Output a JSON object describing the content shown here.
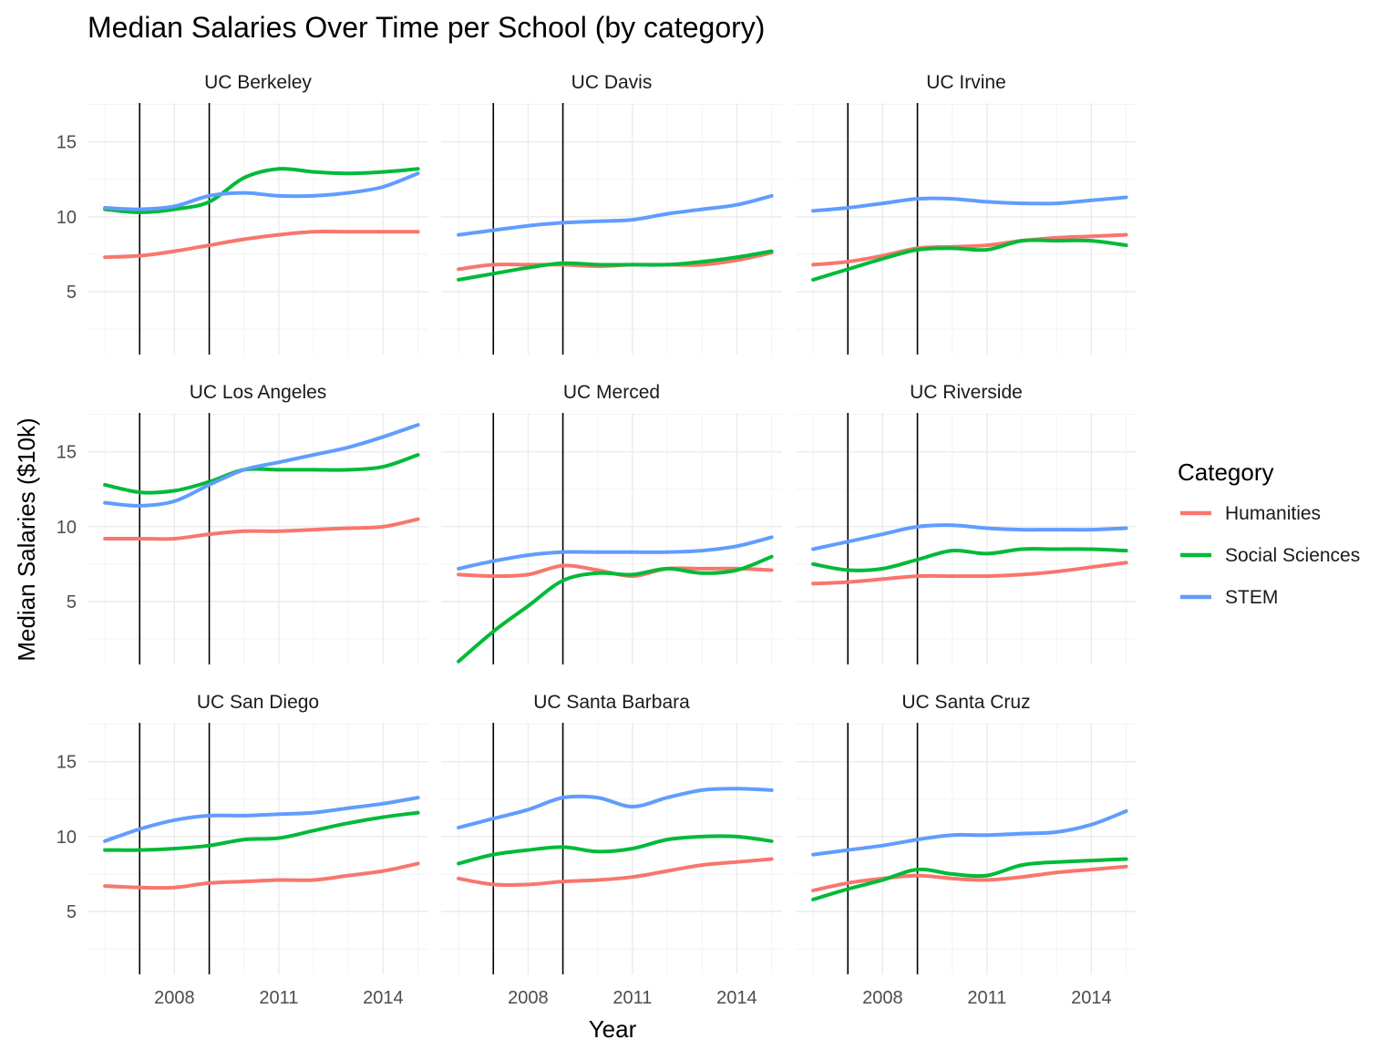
{
  "chart_data": {
    "type": "line",
    "title": "Median Salaries Over Time per School (by category)",
    "xlabel": "Year",
    "ylabel": "Median Salaries ($10k)",
    "xlim": [
      2005.5,
      2015.3
    ],
    "ylim": [
      0.8,
      17.6
    ],
    "x_ticks": [
      2008,
      2011,
      2014
    ],
    "y_ticks": [
      5,
      10,
      15
    ],
    "reference_lines_x": [
      2007,
      2009
    ],
    "legend": {
      "title": "Category",
      "position": "right",
      "entries": [
        "Humanities",
        "Social Sciences",
        "STEM"
      ]
    },
    "colors": {
      "Humanities": "#F8766D",
      "Social Sciences": "#00BA38",
      "STEM": "#619CFF"
    },
    "x": [
      2006,
      2007,
      2008,
      2009,
      2010,
      2011,
      2012,
      2013,
      2014,
      2015
    ],
    "panels": [
      {
        "name": "UC Berkeley",
        "series": [
          {
            "name": "Humanities",
            "values": [
              7.3,
              7.4,
              7.7,
              8.1,
              8.5,
              8.8,
              9.0,
              9.0,
              9.0,
              9.0
            ]
          },
          {
            "name": "Social Sciences",
            "values": [
              10.5,
              10.3,
              10.5,
              11.0,
              12.6,
              13.2,
              13.0,
              12.9,
              13.0,
              13.2
            ]
          },
          {
            "name": "STEM",
            "values": [
              10.6,
              10.5,
              10.7,
              11.4,
              11.6,
              11.4,
              11.4,
              11.6,
              12.0,
              12.9
            ]
          }
        ]
      },
      {
        "name": "UC Davis",
        "series": [
          {
            "name": "Humanities",
            "values": [
              6.5,
              6.8,
              6.8,
              6.8,
              6.7,
              6.8,
              6.8,
              6.8,
              7.1,
              7.6
            ]
          },
          {
            "name": "Social Sciences",
            "values": [
              5.8,
              6.2,
              6.6,
              6.9,
              6.8,
              6.8,
              6.8,
              7.0,
              7.3,
              7.7
            ]
          },
          {
            "name": "STEM",
            "values": [
              8.8,
              9.1,
              9.4,
              9.6,
              9.7,
              9.8,
              10.2,
              10.5,
              10.8,
              11.4
            ]
          }
        ]
      },
      {
        "name": "UC Irvine",
        "series": [
          {
            "name": "Humanities",
            "values": [
              6.8,
              7.0,
              7.4,
              7.9,
              8.0,
              8.1,
              8.4,
              8.6,
              8.7,
              8.8
            ]
          },
          {
            "name": "Social Sciences",
            "values": [
              5.8,
              6.5,
              7.2,
              7.8,
              7.9,
              7.8,
              8.4,
              8.4,
              8.4,
              8.1
            ]
          },
          {
            "name": "STEM",
            "values": [
              10.4,
              10.6,
              10.9,
              11.2,
              11.2,
              11.0,
              10.9,
              10.9,
              11.1,
              11.3
            ]
          }
        ]
      },
      {
        "name": "UC Los Angeles",
        "series": [
          {
            "name": "Humanities",
            "values": [
              9.2,
              9.2,
              9.2,
              9.5,
              9.7,
              9.7,
              9.8,
              9.9,
              10.0,
              10.5
            ]
          },
          {
            "name": "Social Sciences",
            "values": [
              12.8,
              12.3,
              12.4,
              13.0,
              13.8,
              13.8,
              13.8,
              13.8,
              14.0,
              14.8
            ]
          },
          {
            "name": "STEM",
            "values": [
              11.6,
              11.4,
              11.7,
              12.8,
              13.8,
              14.3,
              14.8,
              15.3,
              16.0,
              16.8
            ]
          }
        ]
      },
      {
        "name": "UC Merced",
        "series": [
          {
            "name": "Humanities",
            "values": [
              6.8,
              6.7,
              6.8,
              7.4,
              7.1,
              6.7,
              7.2,
              7.2,
              7.2,
              7.1
            ]
          },
          {
            "name": "Social Sciences",
            "values": [
              1.0,
              3.0,
              4.7,
              6.4,
              6.9,
              6.8,
              7.2,
              6.9,
              7.1,
              8.0
            ]
          },
          {
            "name": "STEM",
            "values": [
              7.2,
              7.7,
              8.1,
              8.3,
              8.3,
              8.3,
              8.3,
              8.4,
              8.7,
              9.3
            ]
          }
        ]
      },
      {
        "name": "UC Riverside",
        "series": [
          {
            "name": "Humanities",
            "values": [
              6.2,
              6.3,
              6.5,
              6.7,
              6.7,
              6.7,
              6.8,
              7.0,
              7.3,
              7.6
            ]
          },
          {
            "name": "Social Sciences",
            "values": [
              7.5,
              7.1,
              7.2,
              7.8,
              8.4,
              8.2,
              8.5,
              8.5,
              8.5,
              8.4
            ]
          },
          {
            "name": "STEM",
            "values": [
              8.5,
              9.0,
              9.5,
              10.0,
              10.1,
              9.9,
              9.8,
              9.8,
              9.8,
              9.9
            ]
          }
        ]
      },
      {
        "name": "UC San Diego",
        "series": [
          {
            "name": "Humanities",
            "values": [
              6.7,
              6.6,
              6.6,
              6.9,
              7.0,
              7.1,
              7.1,
              7.4,
              7.7,
              8.2
            ]
          },
          {
            "name": "Social Sciences",
            "values": [
              9.1,
              9.1,
              9.2,
              9.4,
              9.8,
              9.9,
              10.4,
              10.9,
              11.3,
              11.6
            ]
          },
          {
            "name": "STEM",
            "values": [
              9.7,
              10.5,
              11.1,
              11.4,
              11.4,
              11.5,
              11.6,
              11.9,
              12.2,
              12.6
            ]
          }
        ]
      },
      {
        "name": "UC Santa Barbara",
        "series": [
          {
            "name": "Humanities",
            "values": [
              7.2,
              6.8,
              6.8,
              7.0,
              7.1,
              7.3,
              7.7,
              8.1,
              8.3,
              8.5
            ]
          },
          {
            "name": "Social Sciences",
            "values": [
              8.2,
              8.8,
              9.1,
              9.3,
              9.0,
              9.2,
              9.8,
              10.0,
              10.0,
              9.7
            ]
          },
          {
            "name": "STEM",
            "values": [
              10.6,
              11.2,
              11.8,
              12.6,
              12.6,
              12.0,
              12.6,
              13.1,
              13.2,
              13.1
            ]
          }
        ]
      },
      {
        "name": "UC Santa Cruz",
        "series": [
          {
            "name": "Humanities",
            "values": [
              6.4,
              6.9,
              7.2,
              7.4,
              7.2,
              7.1,
              7.3,
              7.6,
              7.8,
              8.0
            ]
          },
          {
            "name": "Social Sciences",
            "values": [
              5.8,
              6.5,
              7.1,
              7.8,
              7.5,
              7.4,
              8.1,
              8.3,
              8.4,
              8.5
            ]
          },
          {
            "name": "STEM",
            "values": [
              8.8,
              9.1,
              9.4,
              9.8,
              10.1,
              10.1,
              10.2,
              10.3,
              10.8,
              11.7
            ]
          }
        ]
      }
    ]
  }
}
